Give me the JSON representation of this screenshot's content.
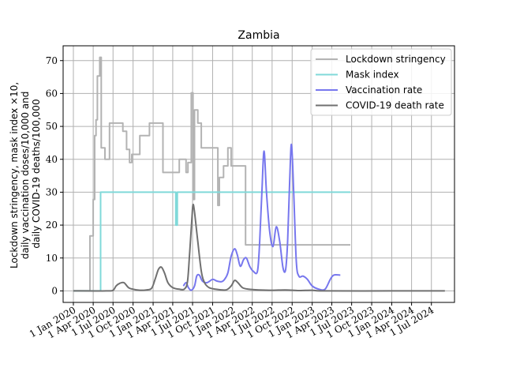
{
  "chart_data": {
    "type": "line",
    "title": "Zambia",
    "ylabel_lines": [
      "Lockdown stringency, mask index ×10,",
      "daily vaccination doses/10,000 and",
      "daily COVID-19 deaths/100,000"
    ],
    "xlabel": "",
    "xlim": [
      "2019-11-15",
      "2024-10-15"
    ],
    "ylim": [
      -3.5,
      74.5
    ],
    "yticks": [
      0,
      10,
      20,
      30,
      40,
      50,
      60,
      70
    ],
    "xticks": [
      {
        "date": "2020-01-01",
        "label": "1 Jan 2020"
      },
      {
        "date": "2020-04-01",
        "label": "1 Apr 2020"
      },
      {
        "date": "2020-07-01",
        "label": "1 Jul 2020"
      },
      {
        "date": "2020-10-01",
        "label": "1 Oct 2020"
      },
      {
        "date": "2021-01-01",
        "label": "1 Jan 2021"
      },
      {
        "date": "2021-04-01",
        "label": "1 Apr 2021"
      },
      {
        "date": "2021-07-01",
        "label": "1 Jul 2021"
      },
      {
        "date": "2021-10-01",
        "label": "1 Oct 2021"
      },
      {
        "date": "2022-01-01",
        "label": "1 Jan 2022"
      },
      {
        "date": "2022-04-01",
        "label": "1 Apr 2022"
      },
      {
        "date": "2022-07-01",
        "label": "1 Jul 2022"
      },
      {
        "date": "2022-10-01",
        "label": "1 Oct 2022"
      },
      {
        "date": "2023-01-01",
        "label": "1 Jan 2023"
      },
      {
        "date": "2023-04-01",
        "label": "1 Apr 2023"
      },
      {
        "date": "2023-07-01",
        "label": "1 Jul 2023"
      },
      {
        "date": "2023-10-01",
        "label": "1 Oct 2023"
      },
      {
        "date": "2024-01-01",
        "label": "1 Jan 2024"
      },
      {
        "date": "2024-04-01",
        "label": "1 Apr 2024"
      },
      {
        "date": "2024-07-01",
        "label": "1 Jul 2024"
      }
    ],
    "grid": true,
    "legend_position": "top-right",
    "series": [
      {
        "name": "Lockdown stringency",
        "color": "#b3b3b3",
        "step": true,
        "points": [
          [
            "2020-01-01",
            0
          ],
          [
            "2020-03-17",
            0
          ],
          [
            "2020-03-17",
            16.7
          ],
          [
            "2020-04-01",
            16.7
          ],
          [
            "2020-04-01",
            27.8
          ],
          [
            "2020-04-08",
            27.8
          ],
          [
            "2020-04-08",
            47.2
          ],
          [
            "2020-04-14",
            47.2
          ],
          [
            "2020-04-14",
            52
          ],
          [
            "2020-04-20",
            52
          ],
          [
            "2020-04-20",
            65.3
          ],
          [
            "2020-05-01",
            65.3
          ],
          [
            "2020-05-01",
            71
          ],
          [
            "2020-05-08",
            71
          ],
          [
            "2020-05-08",
            43.5
          ],
          [
            "2020-05-25",
            43.5
          ],
          [
            "2020-05-25",
            40
          ],
          [
            "2020-06-15",
            40
          ],
          [
            "2020-06-15",
            51
          ],
          [
            "2020-08-15",
            51
          ],
          [
            "2020-08-15",
            48.5
          ],
          [
            "2020-09-01",
            48.5
          ],
          [
            "2020-09-01",
            43
          ],
          [
            "2020-09-15",
            43
          ],
          [
            "2020-09-15",
            39
          ],
          [
            "2020-09-25",
            39
          ],
          [
            "2020-09-25",
            41.5
          ],
          [
            "2020-11-01",
            41.5
          ],
          [
            "2020-11-01",
            47.2
          ],
          [
            "2020-12-15",
            47.2
          ],
          [
            "2020-12-15",
            51
          ],
          [
            "2021-02-15",
            51
          ],
          [
            "2021-02-15",
            36
          ],
          [
            "2021-05-01",
            36
          ],
          [
            "2021-05-01",
            40
          ],
          [
            "2021-06-01",
            40
          ],
          [
            "2021-06-01",
            36
          ],
          [
            "2021-06-10",
            36
          ],
          [
            "2021-06-10",
            39
          ],
          [
            "2021-06-25",
            39
          ],
          [
            "2021-06-25",
            60.2
          ],
          [
            "2021-07-03",
            60.2
          ],
          [
            "2021-07-03",
            27.8
          ],
          [
            "2021-07-10",
            27.8
          ],
          [
            "2021-07-10",
            55
          ],
          [
            "2021-07-25",
            55
          ],
          [
            "2021-07-25",
            51
          ],
          [
            "2021-08-10",
            51
          ],
          [
            "2021-08-10",
            43.5
          ],
          [
            "2021-10-25",
            43.5
          ],
          [
            "2021-10-25",
            26
          ],
          [
            "2021-11-01",
            26
          ],
          [
            "2021-11-01",
            34.5
          ],
          [
            "2021-11-20",
            34.5
          ],
          [
            "2021-11-20",
            38
          ],
          [
            "2021-12-10",
            38
          ],
          [
            "2021-12-10",
            43.5
          ],
          [
            "2021-12-25",
            43.5
          ],
          [
            "2021-12-25",
            38
          ],
          [
            "2022-03-01",
            38
          ],
          [
            "2022-03-01",
            14
          ],
          [
            "2023-06-25",
            14
          ]
        ]
      },
      {
        "name": "Mask index",
        "color": "#80d9d9",
        "step": true,
        "points": [
          [
            "2020-01-01",
            0
          ],
          [
            "2020-05-05",
            0
          ],
          [
            "2020-05-05",
            30
          ],
          [
            "2021-04-15",
            30
          ],
          [
            "2021-04-15",
            20
          ],
          [
            "2021-04-22",
            20
          ],
          [
            "2021-04-22",
            30
          ],
          [
            "2023-06-25",
            30
          ]
        ]
      },
      {
        "name": "Vaccination rate",
        "color": "#7777ee",
        "step": false,
        "points": [
          [
            "2021-05-20",
            1.5
          ],
          [
            "2021-06-01",
            2.5
          ],
          [
            "2021-06-12",
            1
          ],
          [
            "2021-06-25",
            0.2
          ],
          [
            "2021-07-10",
            1.5
          ],
          [
            "2021-07-20",
            4.5
          ],
          [
            "2021-08-01",
            4.8
          ],
          [
            "2021-08-15",
            3
          ],
          [
            "2021-09-05",
            2.5
          ],
          [
            "2021-10-01",
            3.5
          ],
          [
            "2021-10-20",
            3
          ],
          [
            "2021-11-10",
            2.8
          ],
          [
            "2021-11-25",
            3.5
          ],
          [
            "2021-12-10",
            5.5
          ],
          [
            "2021-12-25",
            10.5
          ],
          [
            "2022-01-10",
            12.8
          ],
          [
            "2022-01-22",
            11
          ],
          [
            "2022-02-05",
            7.5
          ],
          [
            "2022-02-20",
            9.5
          ],
          [
            "2022-03-05",
            10
          ],
          [
            "2022-03-20",
            7.5
          ],
          [
            "2022-04-05",
            6
          ],
          [
            "2022-04-25",
            6
          ],
          [
            "2022-05-05",
            15
          ],
          [
            "2022-05-15",
            30
          ],
          [
            "2022-05-25",
            42.5
          ],
          [
            "2022-06-05",
            30
          ],
          [
            "2022-06-20",
            18
          ],
          [
            "2022-07-05",
            13.5
          ],
          [
            "2022-07-20",
            19.5
          ],
          [
            "2022-08-05",
            15
          ],
          [
            "2022-08-20",
            7
          ],
          [
            "2022-09-01",
            6.5
          ],
          [
            "2022-09-10",
            15
          ],
          [
            "2022-09-20",
            34
          ],
          [
            "2022-09-28",
            44.5
          ],
          [
            "2022-10-08",
            30
          ],
          [
            "2022-10-20",
            9
          ],
          [
            "2022-11-01",
            4.5
          ],
          [
            "2022-11-20",
            4.5
          ],
          [
            "2022-12-10",
            3.5
          ],
          [
            "2023-01-01",
            1.5
          ],
          [
            "2023-02-01",
            0.5
          ],
          [
            "2023-03-01",
            0.5
          ],
          [
            "2023-03-25",
            3.5
          ],
          [
            "2023-04-10",
            4.8
          ],
          [
            "2023-05-10",
            4.8
          ]
        ]
      },
      {
        "name": "COVID-19 death rate",
        "color": "#707070",
        "step": false,
        "points": [
          [
            "2020-01-01",
            0
          ],
          [
            "2020-06-01",
            0
          ],
          [
            "2020-07-01",
            0.2
          ],
          [
            "2020-07-15",
            1.5
          ],
          [
            "2020-08-01",
            2.3
          ],
          [
            "2020-08-20",
            2.5
          ],
          [
            "2020-09-10",
            1
          ],
          [
            "2020-10-01",
            0.5
          ],
          [
            "2020-11-01",
            0.2
          ],
          [
            "2020-12-01",
            0.3
          ],
          [
            "2020-12-25",
            0.8
          ],
          [
            "2021-01-10",
            3.5
          ],
          [
            "2021-01-25",
            6.5
          ],
          [
            "2021-02-08",
            7.2
          ],
          [
            "2021-02-22",
            5.5
          ],
          [
            "2021-03-10",
            2.5
          ],
          [
            "2021-04-01",
            1
          ],
          [
            "2021-05-01",
            0.5
          ],
          [
            "2021-05-25",
            0.6
          ],
          [
            "2021-06-08",
            3
          ],
          [
            "2021-06-18",
            12
          ],
          [
            "2021-06-28",
            22
          ],
          [
            "2021-07-03",
            26.2
          ],
          [
            "2021-07-10",
            24
          ],
          [
            "2021-07-25",
            15
          ],
          [
            "2021-08-10",
            6
          ],
          [
            "2021-08-25",
            2.5
          ],
          [
            "2021-09-15",
            1
          ],
          [
            "2021-10-15",
            0.5
          ],
          [
            "2021-12-01",
            0.3
          ],
          [
            "2021-12-25",
            1.5
          ],
          [
            "2022-01-10",
            3.2
          ],
          [
            "2022-01-25",
            2.5
          ],
          [
            "2022-02-15",
            1
          ],
          [
            "2022-03-15",
            0.5
          ],
          [
            "2022-05-01",
            0.3
          ],
          [
            "2022-07-01",
            0.2
          ],
          [
            "2022-09-01",
            0.3
          ],
          [
            "2022-11-01",
            0.1
          ],
          [
            "2023-01-01",
            0.2
          ],
          [
            "2023-03-01",
            0
          ],
          [
            "2024-01-01",
            0
          ],
          [
            "2024-09-01",
            0
          ]
        ]
      }
    ]
  }
}
